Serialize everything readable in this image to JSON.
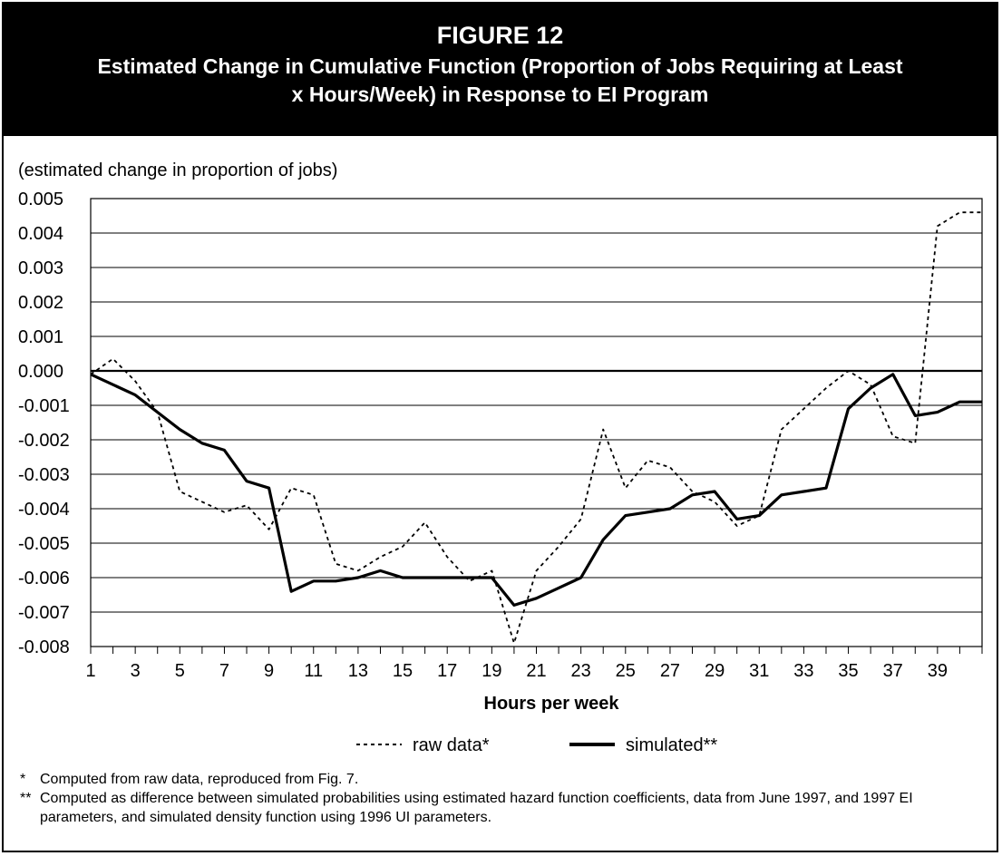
{
  "header": {
    "figure_number": "FIGURE 12",
    "title": "Estimated Change in Cumulative Function (Proportion of Jobs Requiring at Least x Hours/Week) in Response to EI Program"
  },
  "chart_data": {
    "type": "line",
    "ylabel": "(estimated change in proportion of jobs)",
    "xlabel": "Hours per week",
    "x": [
      1,
      2,
      3,
      4,
      5,
      6,
      7,
      8,
      9,
      10,
      11,
      12,
      13,
      14,
      15,
      16,
      17,
      18,
      19,
      20,
      21,
      22,
      23,
      24,
      25,
      26,
      27,
      28,
      29,
      30,
      31,
      32,
      33,
      34,
      35,
      36,
      37,
      38,
      39,
      40,
      41
    ],
    "xticks": [
      "1",
      "3",
      "5",
      "7",
      "9",
      "11",
      "13",
      "15",
      "17",
      "19",
      "21",
      "23",
      "25",
      "27",
      "29",
      "31",
      "33",
      "35",
      "37",
      "39"
    ],
    "ylim": [
      -0.008,
      0.005
    ],
    "yticks": [
      "0.005",
      "0.004",
      "0.003",
      "0.002",
      "0.001",
      "0.000",
      "-0.001",
      "-0.002",
      "-0.003",
      "-0.004",
      "-0.005",
      "-0.006",
      "-0.007",
      "-0.008"
    ],
    "grid": true,
    "legend_position": "bottom",
    "series": [
      {
        "name": "raw data*",
        "style": "dashed",
        "values": [
          -0.0001,
          0.00035,
          -0.0003,
          -0.0012,
          -0.0035,
          -0.0038,
          -0.0041,
          -0.0039,
          -0.0046,
          -0.0034,
          -0.0036,
          -0.0056,
          -0.0058,
          -0.0054,
          -0.0051,
          -0.0044,
          -0.0054,
          -0.0061,
          -0.0058,
          -0.0079,
          -0.0058,
          -0.0051,
          -0.0043,
          -0.0017,
          -0.0034,
          -0.0026,
          -0.0028,
          -0.0035,
          -0.0038,
          -0.0045,
          -0.0042,
          -0.0017,
          -0.0011,
          -0.0005,
          0.0,
          -0.0004,
          -0.0019,
          -0.0021,
          0.0042,
          0.0046,
          0.0046
        ]
      },
      {
        "name": "simulated**",
        "style": "solid",
        "values": [
          -0.0001,
          -0.0004,
          -0.0007,
          -0.0012,
          -0.0017,
          -0.0021,
          -0.0023,
          -0.0032,
          -0.0034,
          -0.0064,
          -0.0061,
          -0.0061,
          -0.006,
          -0.0058,
          -0.006,
          -0.006,
          -0.006,
          -0.006,
          -0.006,
          -0.0068,
          -0.0066,
          -0.0063,
          -0.006,
          -0.0049,
          -0.0042,
          -0.0041,
          -0.004,
          -0.0036,
          -0.0035,
          -0.0043,
          -0.0042,
          -0.0036,
          -0.0035,
          -0.0034,
          -0.0011,
          -0.0005,
          -0.0001,
          -0.0013,
          -0.0012,
          -0.0009,
          -0.0009
        ]
      }
    ]
  },
  "footnotes": [
    {
      "mark": "*",
      "text": "Computed from raw data, reproduced from Fig. 7."
    },
    {
      "mark": "**",
      "text": "Computed as difference between simulated probabilities using estimated hazard function coefficients, data from June 1997, and 1997 EI parameters, and simulated density function using 1996 UI parameters."
    }
  ],
  "colors": {
    "header_bg": "#000000",
    "header_text": "#ffffff",
    "line": "#000000"
  }
}
